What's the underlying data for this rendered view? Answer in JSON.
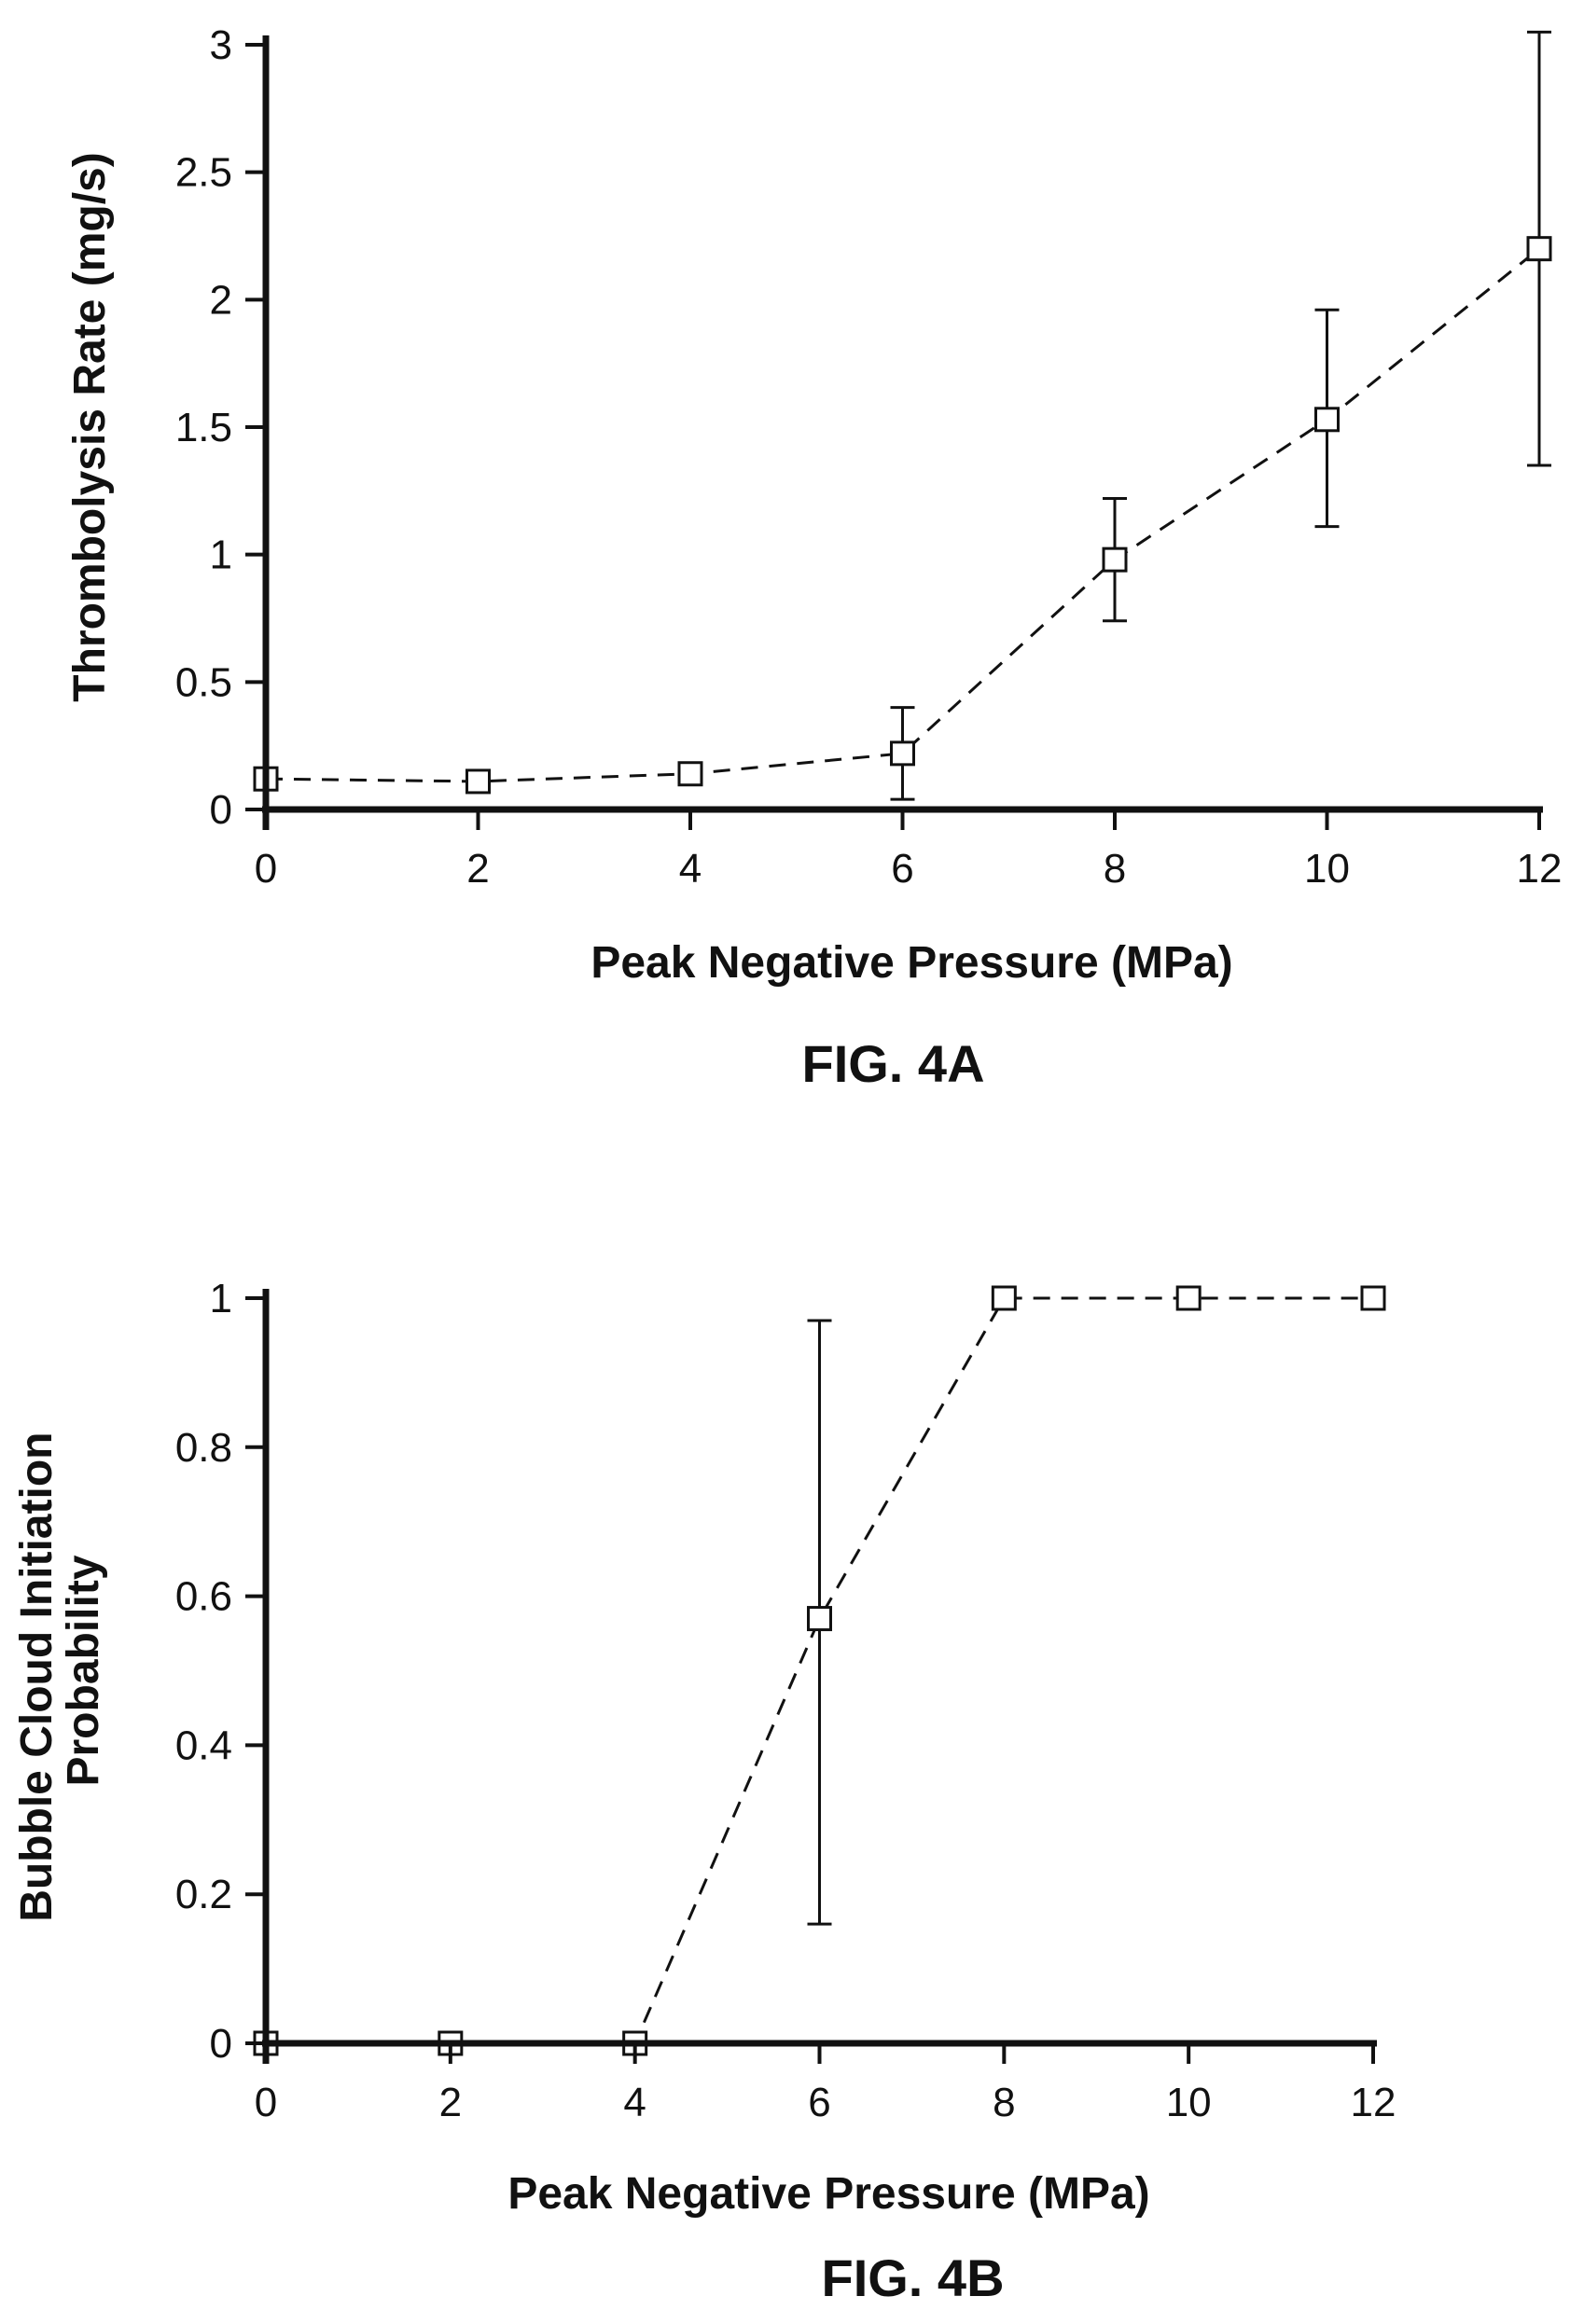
{
  "chart_data": [
    {
      "type": "line",
      "figure_label": "FIG. 4A",
      "xlabel": "Peak Negative Pressure (MPa)",
      "ylabel": "Thrombolysis Rate (mg/s)",
      "xlim": [
        0,
        12
      ],
      "ylim": [
        0,
        3
      ],
      "xticks": [
        "0",
        "2",
        "4",
        "6",
        "8",
        "10",
        "12"
      ],
      "yticks": [
        "0",
        "0.5",
        "1",
        "1.5",
        "2",
        "2.5",
        "3"
      ],
      "line_style": "dashed",
      "marker": "open-square",
      "series": [
        {
          "x": [
            0,
            2,
            4,
            6,
            8,
            10,
            12
          ],
          "y": [
            0.12,
            0.11,
            0.14,
            0.22,
            0.98,
            1.53,
            2.2
          ],
          "err_low": [
            null,
            null,
            null,
            0.04,
            0.74,
            1.11,
            1.35
          ],
          "err_high": [
            null,
            null,
            null,
            0.4,
            1.22,
            1.96,
            3.05
          ]
        }
      ]
    },
    {
      "type": "line",
      "figure_label": "FIG. 4B",
      "xlabel": "Peak Negative Pressure (MPa)",
      "ylabel": "Bubble Cloud Initiation Probability",
      "ylabel_lines": [
        "Bubble Cloud Initiation",
        "Probability"
      ],
      "xlim": [
        0,
        12
      ],
      "ylim": [
        0,
        1
      ],
      "xticks": [
        "0",
        "2",
        "4",
        "6",
        "8",
        "10",
        "12"
      ],
      "yticks": [
        "0",
        "0.2",
        "0.4",
        "0.6",
        "0.8",
        "1"
      ],
      "line_style": "dashed",
      "marker": "open-square",
      "series": [
        {
          "x": [
            0,
            2,
            4,
            6,
            8,
            10,
            12
          ],
          "y": [
            0,
            0,
            0,
            0.57,
            1,
            1,
            1
          ],
          "err_low": [
            null,
            null,
            null,
            0.16,
            null,
            null,
            null
          ],
          "err_high": [
            null,
            null,
            null,
            0.97,
            null,
            null,
            null
          ]
        }
      ]
    }
  ]
}
